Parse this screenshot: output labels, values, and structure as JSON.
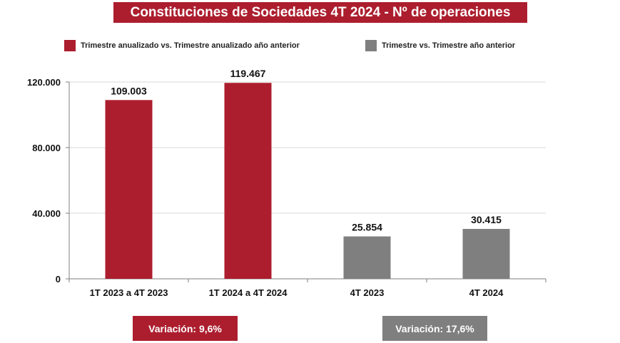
{
  "chart_data": {
    "type": "bar",
    "title": "Constituciones de Sociedades 4T 2024 - Nº de operaciones",
    "categories": [
      "1T 2023 a 4T 2023",
      "1T 2024 a 4T 2024",
      "4T 2023",
      "4T 2024"
    ],
    "values": [
      109003,
      119467,
      25854,
      30415
    ],
    "value_labels": [
      "109.003",
      "119.467",
      "25.854",
      "30.415"
    ],
    "bar_colors": [
      "#ac1e2e",
      "#ac1e2e",
      "#7f7f7f",
      "#7f7f7f"
    ],
    "series": [
      {
        "name": "Trimestre anualizado vs. Trimestre anualizado año anterior",
        "color": "#ac1e2e"
      },
      {
        "name": "Trimestre vs. Trimestre año anterior",
        "color": "#7f7f7f"
      }
    ],
    "y_ticks": [
      0,
      40000,
      80000,
      120000
    ],
    "y_tick_labels": [
      "0",
      "40.000",
      "80.000",
      "120.000"
    ],
    "ylim": [
      0,
      120000
    ],
    "grid": true,
    "legend_position": "top",
    "xlabel": "",
    "ylabel": ""
  },
  "colors": {
    "red": "#ac1e2e",
    "gray": "#7f7f7f"
  },
  "variation": {
    "left": "Variación:  9,6%",
    "right": "Variación: 17,6%"
  }
}
